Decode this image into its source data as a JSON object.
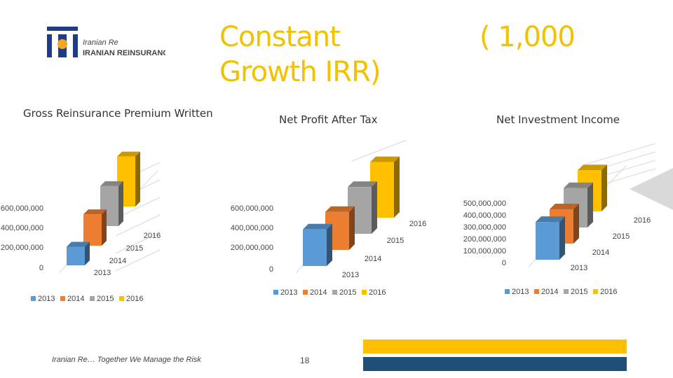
{
  "header": {
    "title": "Constant Growth IRR)",
    "units": "( 1,000",
    "logo": {
      "brand_script": "Iranian Re",
      "brand_caps": "IRANIAN REINSURANCE CO."
    }
  },
  "colors": {
    "2013": "#5b9bd5",
    "2014": "#ed7d31",
    "2015": "#a5a5a5",
    "2016": "#ffc000",
    "accent_navy": "#1f4e79",
    "logo_blue": "#1f3c88"
  },
  "chart_data": [
    {
      "type": "bar",
      "title": "Gross Reinsurance Premium Written",
      "categories": [
        "2013",
        "2014",
        "2015",
        "2016"
      ],
      "values": [
        260000000,
        440000000,
        560000000,
        700000000
      ],
      "yticks": [
        "0",
        "200,000,000",
        "400,000,000",
        "600,000,000"
      ],
      "ylim": [
        0,
        800000000
      ],
      "legend": [
        "2013",
        "2014",
        "2015",
        "2016"
      ],
      "legend_position": "bottom"
    },
    {
      "type": "bar",
      "title": "Net Profit After Tax",
      "categories": [
        "2013",
        "2014",
        "2015",
        "2016"
      ],
      "values": [
        500000000,
        520000000,
        640000000,
        760000000
      ],
      "yticks": [
        "0",
        "200,000,000",
        "400,000,000",
        "600,000,000"
      ],
      "ylim": [
        0,
        800000000
      ],
      "legend": [
        "2013",
        "2014",
        "2015",
        "2016"
      ],
      "legend_position": "bottom"
    },
    {
      "type": "bar",
      "title": "Net Investment Income",
      "categories": [
        "2013",
        "2014",
        "2015",
        "2016"
      ],
      "values": [
        440000000,
        400000000,
        460000000,
        480000000
      ],
      "yticks": [
        "0",
        "100,000,000",
        "200,000,000",
        "300,000,000",
        "400,000,000",
        "500,000,000"
      ],
      "ylim": [
        0,
        600000000
      ],
      "legend": [
        "2013",
        "2014",
        "2015",
        "2016"
      ],
      "legend_position": "bottom"
    }
  ],
  "footer": {
    "tagline": "Iranian Re… Together We Manage the Risk",
    "page_number": "18"
  }
}
